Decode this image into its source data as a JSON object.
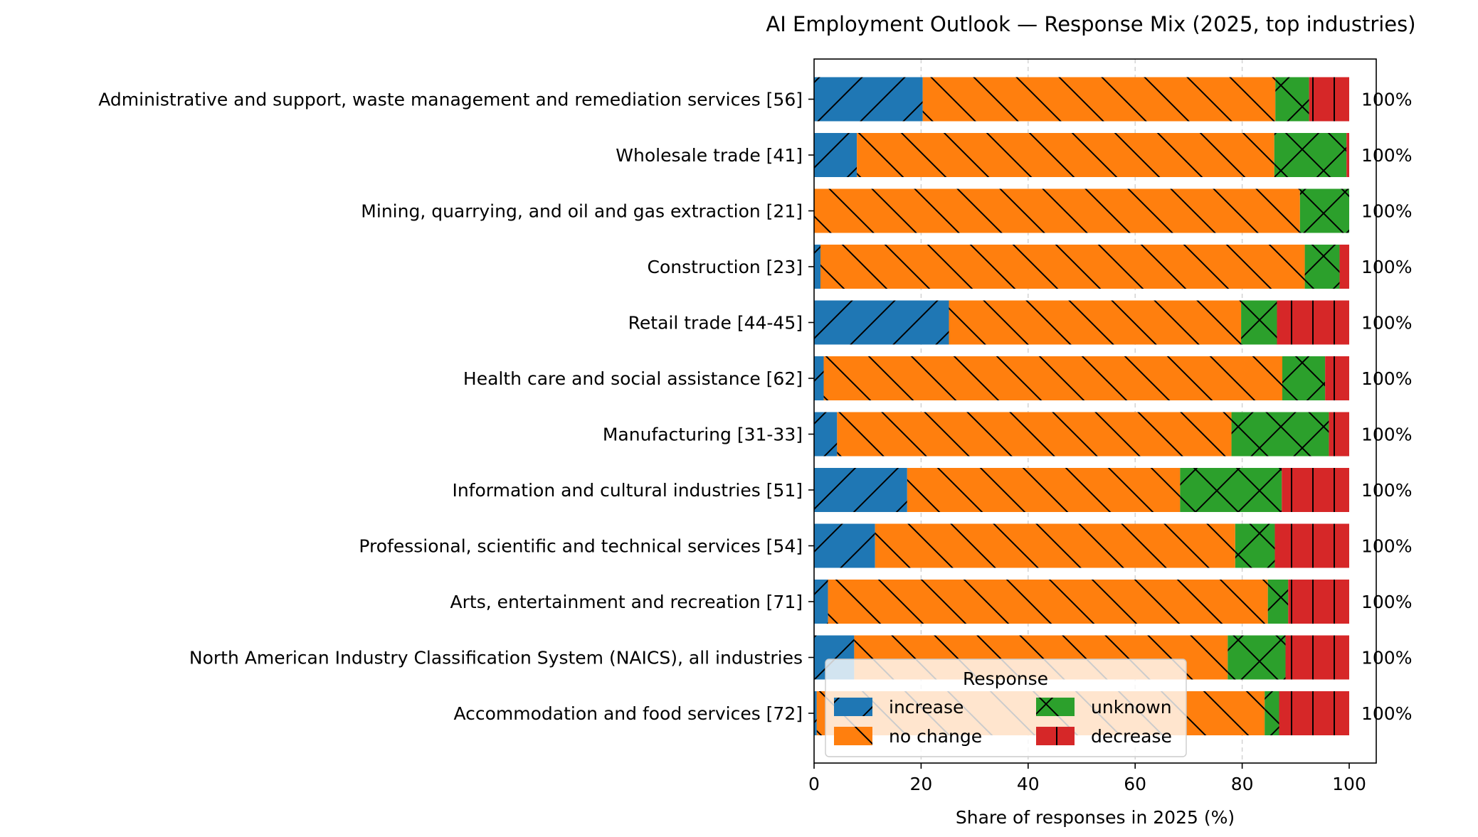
{
  "chart_data": {
    "type": "bar",
    "orientation": "horizontal",
    "stacked": true,
    "title": "AI Employment Outlook — Response Mix (2025, top industries)",
    "xlabel": "Share of responses in 2025 (%)",
    "ylabel": "",
    "xlim": [
      0,
      105
    ],
    "xticks": [
      "0",
      "20",
      "40",
      "60",
      "80",
      "100"
    ],
    "grid": "vertical dashed",
    "categories": [
      "Administrative and support, waste management and remediation services [56]",
      "Wholesale trade [41]",
      "Mining, quarrying, and oil and gas extraction [21]",
      "Construction [23]",
      "Retail trade [44-45]",
      "Health care and social assistance [62]",
      "Manufacturing [31-33]",
      "Information and cultural industries [51]",
      "Professional, scientific and technical services [54]",
      "Arts, entertainment and recreation [71]",
      "North American Industry Classification System (NAICS), all industries",
      "Accommodation and food services [72]"
    ],
    "totals": [
      "100%",
      "100%",
      "100%",
      "100%",
      "100%",
      "100%",
      "100%",
      "100%",
      "100%",
      "100%",
      "100%",
      "100%"
    ],
    "series": [
      {
        "name": "increase",
        "color": "#1f77b4",
        "hatch": "/",
        "values": [
          20.3,
          8.0,
          0.0,
          1.2,
          25.2,
          1.8,
          4.3,
          17.4,
          11.4,
          2.6,
          7.5,
          0.5
        ]
      },
      {
        "name": "no change",
        "color": "#ff7f0e",
        "hatch": "\\",
        "values": [
          65.9,
          78.0,
          90.8,
          90.5,
          54.6,
          85.7,
          73.7,
          51.0,
          67.3,
          82.2,
          69.8,
          83.7
        ]
      },
      {
        "name": "unknown",
        "color": "#2ca02c",
        "hatch": "x",
        "values": [
          6.3,
          13.5,
          9.2,
          6.5,
          6.7,
          8.0,
          18.2,
          19.0,
          7.4,
          3.8,
          10.8,
          2.7
        ]
      },
      {
        "name": "decrease",
        "color": "#d62728",
        "hatch": "|",
        "values": [
          7.5,
          0.5,
          0.0,
          1.8,
          13.5,
          4.5,
          3.8,
          12.6,
          13.9,
          11.4,
          11.9,
          13.1
        ]
      }
    ],
    "legend": {
      "title": "Response",
      "placement": "lower-left inside",
      "columns": 2
    }
  }
}
